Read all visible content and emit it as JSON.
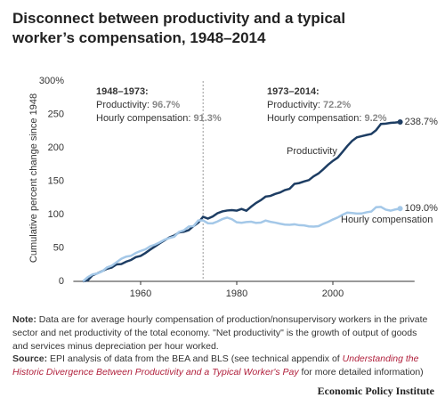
{
  "chart_data": {
    "type": "line",
    "title": "Disconnect between productivity and a typical worker’s compensation, 1948–2014",
    "y_axis_label": "Cumulative percent change since 1948",
    "xlim": [
      1946,
      2017
    ],
    "xticks": [
      1960,
      1980,
      2000
    ],
    "ylim": [
      0,
      300
    ],
    "yticks": [
      0,
      50,
      100,
      150,
      200,
      250,
      {
        "value": 300,
        "label": "300%"
      }
    ],
    "divider_x": 1973,
    "annotations": [
      {
        "heading": "1948–1973:",
        "lines": [
          {
            "label": "Productivity:",
            "value": "96.7%"
          },
          {
            "label": "Hourly compensation:",
            "value": "91.3%"
          }
        ]
      },
      {
        "heading": "1973–2014:",
        "lines": [
          {
            "label": "Productivity:",
            "value": "72.2%"
          },
          {
            "label": "Hourly compensation:",
            "value": "9.2%"
          }
        ]
      }
    ],
    "x": [
      1948,
      1949,
      1950,
      1951,
      1952,
      1953,
      1954,
      1955,
      1956,
      1957,
      1958,
      1959,
      1960,
      1961,
      1962,
      1963,
      1964,
      1965,
      1966,
      1967,
      1968,
      1969,
      1970,
      1971,
      1972,
      1973,
      1974,
      1975,
      1976,
      1977,
      1978,
      1979,
      1980,
      1981,
      1982,
      1983,
      1984,
      1985,
      1986,
      1987,
      1988,
      1989,
      1990,
      1991,
      1992,
      1993,
      1994,
      1995,
      1996,
      1997,
      1998,
      1999,
      2000,
      2001,
      2002,
      2003,
      2004,
      2005,
      2006,
      2007,
      2008,
      2009,
      2010,
      2011,
      2012,
      2013,
      2014
    ],
    "series": [
      {
        "name": "Productivity",
        "color": "#1d3d63",
        "end_label": "238.7%",
        "values": [
          0,
          1.5,
          9.3,
          12.0,
          15.3,
          18.8,
          20.7,
          25.4,
          25.9,
          29.5,
          32.0,
          36.3,
          38.0,
          42.4,
          47.6,
          52.3,
          57.1,
          61.6,
          65.9,
          68.6,
          73.3,
          74.3,
          76.6,
          82.7,
          87.9,
          96.7,
          93.9,
          97.1,
          102.0,
          104.8,
          106.1,
          106.6,
          105.9,
          108.4,
          105.7,
          111.8,
          117.3,
          121.5,
          126.9,
          127.9,
          130.9,
          133.0,
          136.6,
          138.6,
          146.0,
          147.2,
          149.6,
          151.6,
          157.3,
          161.5,
          167.8,
          174.6,
          180.4,
          185.2,
          193.8,
          202.6,
          210.3,
          215.6,
          217.4,
          219.2,
          220.7,
          226.4,
          235.7,
          236.2,
          237.3,
          237.9,
          238.7
        ]
      },
      {
        "name": "Hourly compensation",
        "color": "#a4c8e8",
        "end_label": "109.0%",
        "values": [
          0,
          6.3,
          10.5,
          11.8,
          15.0,
          20.8,
          23.5,
          28.7,
          33.9,
          37.0,
          38.2,
          42.5,
          45.5,
          48.0,
          52.5,
          55.0,
          58.5,
          62.5,
          64.9,
          66.9,
          74.0,
          76.5,
          82.0,
          82.7,
          91.2,
          91.3,
          87.0,
          86.9,
          89.7,
          93.2,
          95.5,
          93.0,
          88.5,
          87.7,
          88.8,
          89.3,
          87.5,
          88.0,
          91.1,
          89.2,
          87.9,
          86.3,
          85.0,
          84.6,
          85.4,
          84.1,
          83.8,
          82.3,
          82.0,
          82.6,
          86.1,
          89.0,
          92.6,
          95.6,
          99.6,
          102.9,
          102.4,
          101.5,
          101.6,
          103.4,
          104.5,
          111.0,
          111.5,
          107.4,
          105.8,
          107.7,
          109.0
        ]
      }
    ],
    "note": {
      "label": "Note:",
      "text": "Data are for average hourly compensation of production/nonsupervisory workers in the private sector and net productivity of the total economy. \"Net productivity\" is the growth of output of goods and services minus depreciation per hour worked."
    },
    "source": {
      "label": "Source:",
      "text_before": "EPI analysis of data from the BEA and BLS (see technical appendix of",
      "link": "Understanding the Historic Divergence Between Productivity and a Typical Worker's Pay",
      "text_after": "for more detailed information)"
    },
    "footer": "Economic Policy Institute"
  }
}
